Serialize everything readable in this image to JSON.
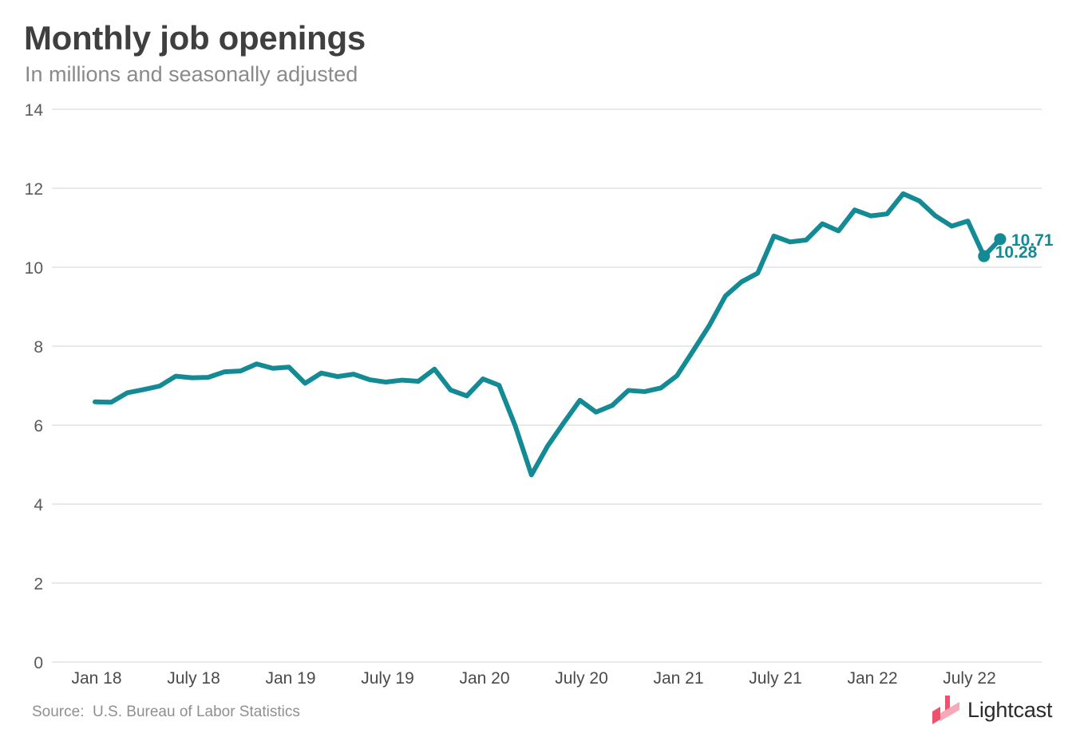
{
  "chart_data": {
    "type": "line",
    "title": "Monthly job openings",
    "subtitle": "In millions and seasonally adjusted",
    "source": "Source:  U.S. Bureau of Labor Statistics",
    "brand": "Lightcast",
    "xlabel": "",
    "ylabel": "",
    "ylim": [
      0,
      14
    ],
    "y_ticks": [
      0,
      2,
      4,
      6,
      8,
      10,
      12,
      14
    ],
    "x_tick_labels": [
      "Jan 18",
      "July 18",
      "Jan 19",
      "July 19",
      "Jan 20",
      "July 20",
      "Jan 21",
      "July 21",
      "Jan 22",
      "July 22"
    ],
    "x_tick_positions": [
      0,
      6,
      12,
      18,
      24,
      30,
      36,
      42,
      48,
      54
    ],
    "grid": true,
    "legend": "none",
    "color": "#138a94",
    "x": [
      "Jan 18",
      "Feb 18",
      "Mar 18",
      "Apr 18",
      "May 18",
      "Jun 18",
      "Jul 18",
      "Aug 18",
      "Sep 18",
      "Oct 18",
      "Nov 18",
      "Dec 18",
      "Jan 19",
      "Feb 19",
      "Mar 19",
      "Apr 19",
      "May 19",
      "Jun 19",
      "Jul 19",
      "Aug 19",
      "Sep 19",
      "Oct 19",
      "Nov 19",
      "Dec 19",
      "Jan 20",
      "Feb 20",
      "Mar 20",
      "Apr 20",
      "May 20",
      "Jun 20",
      "Jul 20",
      "Aug 20",
      "Sep 20",
      "Oct 20",
      "Nov 20",
      "Dec 20",
      "Jan 21",
      "Feb 21",
      "Mar 21",
      "Apr 21",
      "May 21",
      "Jun 21",
      "Jul 21",
      "Aug 21",
      "Sep 21",
      "Oct 21",
      "Nov 21",
      "Dec 21",
      "Jan 22",
      "Feb 22",
      "Mar 22",
      "Apr 22",
      "May 22",
      "Jun 22",
      "Jul 22",
      "Aug 22",
      "Sep 22"
    ],
    "series": [
      {
        "values": [
          6.59,
          6.58,
          6.82,
          6.9,
          6.99,
          7.24,
          7.2,
          7.21,
          7.35,
          7.37,
          7.55,
          7.44,
          7.47,
          7.06,
          7.32,
          7.23,
          7.29,
          7.15,
          7.09,
          7.14,
          7.11,
          7.42,
          6.89,
          6.74,
          7.17,
          7.01,
          5.98,
          4.74,
          5.47,
          6.06,
          6.63,
          6.33,
          6.5,
          6.88,
          6.85,
          6.94,
          7.25,
          7.88,
          8.52,
          9.27,
          9.63,
          9.85,
          10.79,
          10.64,
          10.69,
          11.1,
          10.92,
          11.45,
          11.3,
          11.35,
          11.86,
          11.68,
          11.3,
          11.04,
          11.17,
          10.28,
          10.71
        ]
      }
    ],
    "annotations": [
      {
        "label": "10.71",
        "point_index": 56
      },
      {
        "label": "10.28",
        "point_index": 55
      }
    ]
  }
}
